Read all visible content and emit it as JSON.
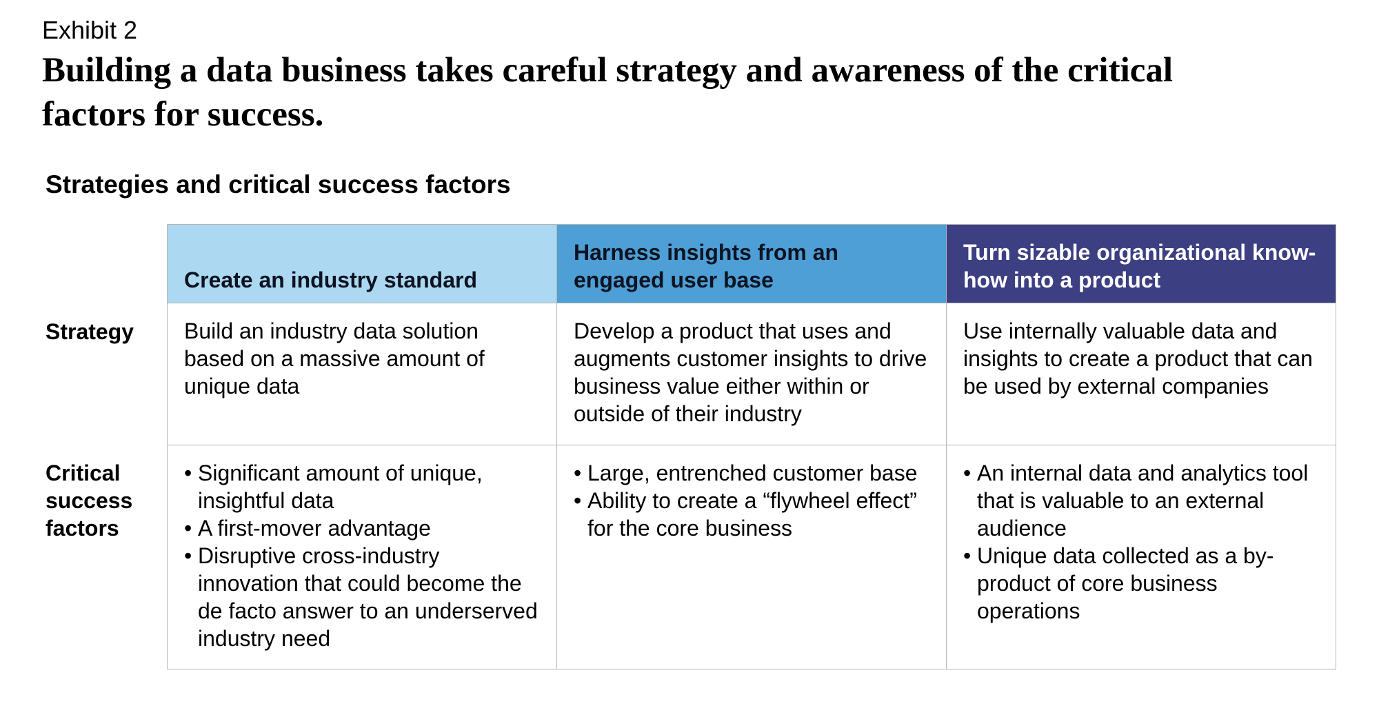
{
  "exhibit_label": "Exhibit 2",
  "title": "Building a data business takes careful strategy and awareness of the critical factors for success.",
  "section_title": "Strategies and critical success factors",
  "row_labels": {
    "strategy": "Strategy",
    "critical": "Critical success factors"
  },
  "colors": {
    "header_1": "#acd9f1",
    "header_2": "#4d9fd5",
    "header_3": "#3c3f82",
    "grid_line": "#b5b5b5"
  },
  "columns": [
    {
      "header": "Create an industry standard",
      "strategy": "Build an industry data solution based on a massive amount of unique data",
      "factors": [
        "Significant amount of unique, insightful data",
        "A first-mover advantage",
        "Disruptive cross-industry innovation that could become the de facto answer to an underserved industry need"
      ]
    },
    {
      "header": "Harness insights from an engaged user base",
      "strategy": "Develop a product that uses and augments customer insights to drive business value either within or outside of their industry",
      "factors": [
        "Large, entrenched customer base",
        "Ability to create a “flywheel effect” for the core business"
      ]
    },
    {
      "header": "Turn sizable organizational know-how into a product",
      "strategy": "Use internally valuable data and insights to create a product that can be used by external companies",
      "factors": [
        "An internal data and analytics tool that is valuable to an external audience",
        "Unique data collected as a by-product of core business operations"
      ]
    }
  ]
}
